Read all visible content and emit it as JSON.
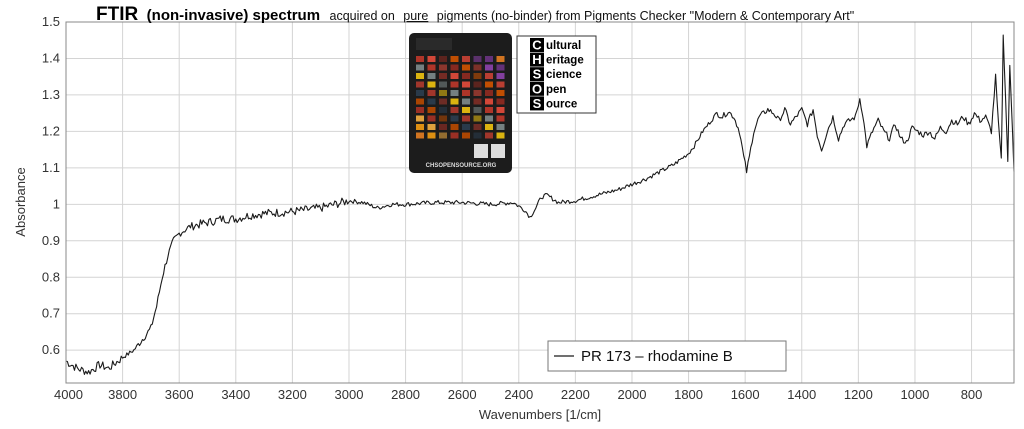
{
  "title": {
    "bold_part": "FTIR",
    "mid_part": "(non-invasive) spectrum",
    "lead": "acquired on",
    "underlined": "pure",
    "rest": "pigments (no-binder) from Pigments Checker \"Modern & Contemporary Art\""
  },
  "logo": {
    "letters": [
      "C",
      "H",
      "S",
      "O",
      "S"
    ],
    "words": [
      "ultural",
      "eritage",
      "cience",
      "pen",
      "ource"
    ],
    "checker_caption": "CHSOPENSOURCE.ORG"
  },
  "colors": {
    "line": "#1a1a1a",
    "grid": "#d4d4d4",
    "axis": "#888888"
  },
  "chart_data": {
    "type": "line",
    "xlabel": "Wavenumbers [1/cm]",
    "ylabel": "Absorbance",
    "xlim": [
      4000,
      650
    ],
    "ylim": [
      0.51,
      1.5
    ],
    "x_reversed": true,
    "grid": true,
    "legend_position": "bottom-right",
    "x_ticks": [
      4000,
      3800,
      3600,
      3400,
      3200,
      3000,
      2800,
      2600,
      2400,
      2200,
      2000,
      1800,
      1600,
      1400,
      1200,
      1000,
      800
    ],
    "y_ticks": [
      0.6,
      0.7,
      0.8,
      0.9,
      1,
      1.1,
      1.2,
      1.3,
      1.4,
      1.5
    ],
    "series": [
      {
        "name": "PR 173 – rhodamine B",
        "points": [
          [
            4000,
            0.57
          ],
          [
            3960,
            0.55
          ],
          [
            3920,
            0.54
          ],
          [
            3880,
            0.56
          ],
          [
            3850,
            0.55
          ],
          [
            3800,
            0.58
          ],
          [
            3760,
            0.6
          ],
          [
            3730,
            0.63
          ],
          [
            3700,
            0.66
          ],
          [
            3680,
            0.72
          ],
          [
            3660,
            0.8
          ],
          [
            3640,
            0.86
          ],
          [
            3620,
            0.9
          ],
          [
            3600,
            0.92
          ],
          [
            3560,
            0.94
          ],
          [
            3500,
            0.95
          ],
          [
            3450,
            0.96
          ],
          [
            3400,
            0.96
          ],
          [
            3350,
            0.97
          ],
          [
            3300,
            0.975
          ],
          [
            3200,
            0.98
          ],
          [
            3100,
            0.99
          ],
          [
            3000,
            1.01
          ],
          [
            2950,
            1.005
          ],
          [
            2900,
            0.99
          ],
          [
            2850,
            1.0
          ],
          [
            2800,
            1.0
          ],
          [
            2700,
            1.005
          ],
          [
            2600,
            1.005
          ],
          [
            2500,
            1.0
          ],
          [
            2420,
            1.005
          ],
          [
            2380,
            0.985
          ],
          [
            2360,
            0.965
          ],
          [
            2340,
            0.99
          ],
          [
            2320,
            1.02
          ],
          [
            2300,
            1.025
          ],
          [
            2260,
            1.005
          ],
          [
            2200,
            1.01
          ],
          [
            2150,
            1.02
          ],
          [
            2100,
            1.03
          ],
          [
            2050,
            1.04
          ],
          [
            2000,
            1.055
          ],
          [
            1950,
            1.07
          ],
          [
            1900,
            1.09
          ],
          [
            1850,
            1.11
          ],
          [
            1800,
            1.14
          ],
          [
            1780,
            1.16
          ],
          [
            1750,
            1.2
          ],
          [
            1720,
            1.23
          ],
          [
            1700,
            1.25
          ],
          [
            1680,
            1.24
          ],
          [
            1660,
            1.255
          ],
          [
            1640,
            1.24
          ],
          [
            1620,
            1.2
          ],
          [
            1605,
            1.13
          ],
          [
            1595,
            1.09
          ],
          [
            1585,
            1.13
          ],
          [
            1570,
            1.2
          ],
          [
            1550,
            1.24
          ],
          [
            1520,
            1.26
          ],
          [
            1500,
            1.25
          ],
          [
            1480,
            1.23
          ],
          [
            1460,
            1.26
          ],
          [
            1440,
            1.22
          ],
          [
            1420,
            1.24
          ],
          [
            1400,
            1.26
          ],
          [
            1380,
            1.22
          ],
          [
            1360,
            1.26
          ],
          [
            1345,
            1.19
          ],
          [
            1330,
            1.15
          ],
          [
            1310,
            1.2
          ],
          [
            1290,
            1.24
          ],
          [
            1270,
            1.18
          ],
          [
            1250,
            1.22
          ],
          [
            1230,
            1.23
          ],
          [
            1210,
            1.24
          ],
          [
            1195,
            1.29
          ],
          [
            1185,
            1.25
          ],
          [
            1170,
            1.16
          ],
          [
            1150,
            1.2
          ],
          [
            1130,
            1.23
          ],
          [
            1110,
            1.2
          ],
          [
            1090,
            1.18
          ],
          [
            1070,
            1.22
          ],
          [
            1050,
            1.18
          ],
          [
            1030,
            1.17
          ],
          [
            1010,
            1.21
          ],
          [
            990,
            1.2
          ],
          [
            970,
            1.19
          ],
          [
            950,
            1.2
          ],
          [
            930,
            1.18
          ],
          [
            910,
            1.21
          ],
          [
            890,
            1.2
          ],
          [
            870,
            1.23
          ],
          [
            850,
            1.22
          ],
          [
            830,
            1.24
          ],
          [
            810,
            1.22
          ],
          [
            790,
            1.25
          ],
          [
            770,
            1.23
          ],
          [
            750,
            1.24
          ],
          [
            730,
            1.2
          ],
          [
            715,
            1.35
          ],
          [
            705,
            1.22
          ],
          [
            695,
            1.12
          ],
          [
            688,
            1.46
          ],
          [
            680,
            1.3
          ],
          [
            672,
            1.12
          ],
          [
            665,
            1.38
          ],
          [
            655,
            1.2
          ],
          [
            650,
            1.09
          ]
        ]
      }
    ]
  }
}
